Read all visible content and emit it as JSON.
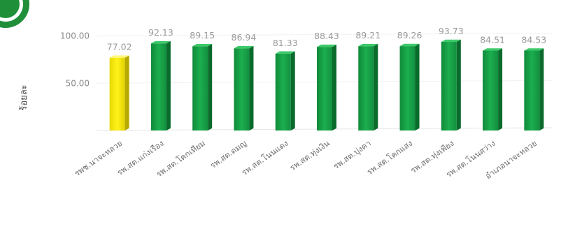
{
  "chart_data": {
    "type": "bar",
    "title": "",
    "xlabel": "",
    "ylabel": "ร้อยละ",
    "ylim": [
      0,
      110
    ],
    "yticks": [
      50,
      100
    ],
    "ytick_labels": [
      "50.00",
      "100.00"
    ],
    "grid": false,
    "categories": [
      "รพช.นาจะหลวย",
      "รพ.สต.แก่งเรือง",
      "รพ.สต.โคกเทียม",
      "รพ.สต.ดมญ",
      "รพ.สต.โนนแดง",
      "รพ.สต.ทุ่งเงิน",
      "รพ.สต.บุ่งคา",
      "รพ.สต.โคกแสง",
      "รพ.สต.ทุ่งเพียง",
      "รพ.สต.โนนสว่าง",
      "อำเภอนาจะหลวย"
    ],
    "values": [
      77.02,
      92.13,
      89.15,
      86.94,
      81.33,
      88.43,
      89.21,
      89.26,
      93.73,
      84.51,
      84.53
    ],
    "value_labels": [
      "77.02",
      "92.13",
      "89.15",
      "86.94",
      "81.33",
      "88.43",
      "89.21",
      "89.26",
      "93.73",
      "84.51",
      "84.53"
    ],
    "colors": [
      "#f2e600",
      "#16a34a",
      "#16a34a",
      "#16a34a",
      "#16a34a",
      "#16a34a",
      "#16a34a",
      "#16a34a",
      "#16a34a",
      "#16a34a",
      "#16a34a"
    ],
    "logo_color": "#1f8f3a"
  }
}
